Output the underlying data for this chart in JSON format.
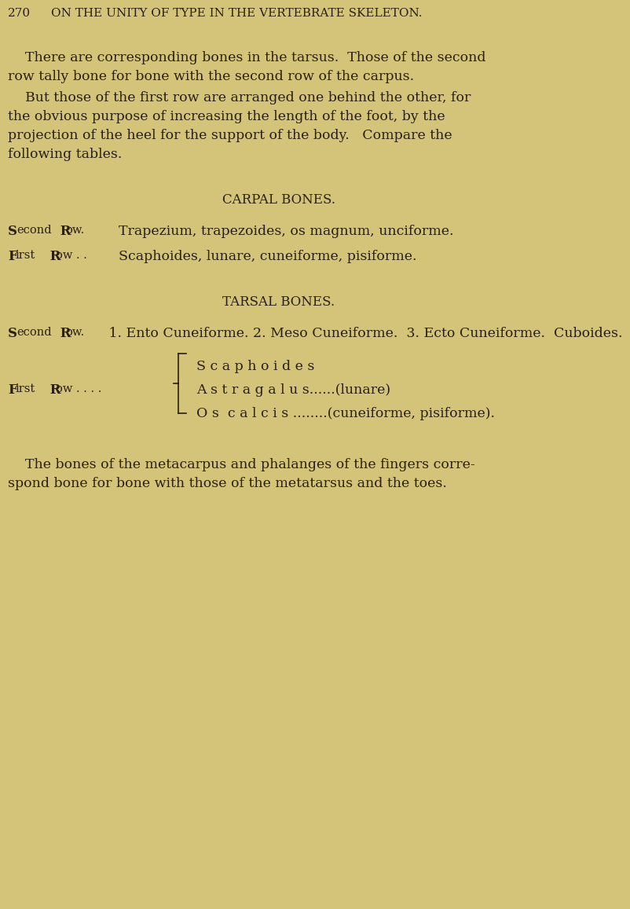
{
  "background_color": "#d4c47a",
  "text_color": "#2a1f0e",
  "page_width": 8.0,
  "page_height": 13.36,
  "header_number": "270",
  "header_title": "ON THE UNITY OF TYPE IN THE VERTEBRATE SKELETON.",
  "para1_line1": "    There are corresponding bones in the tarsus.  Those of the second",
  "para1_line2": "row tally bone for bone with the second row of the carpus.",
  "para2_line1": "    But those of the first row are arranged one behind the other, for",
  "para2_line2": "the obvious purpose of increasing the length of the foot, by the",
  "para2_line3": "projection of the heel for the support of the body.   Compare the",
  "para2_line4": "following tables.",
  "carpal_title": "CARPAL BONES.",
  "carpal_second_label": "Second Row.",
  "carpal_second_text": "Trapezium, trapezoides, os magnum, unciforme.",
  "carpal_first_label": "First Row . .",
  "carpal_first_text": "Scaphoides, lunare, cuneiforme, pisiforme.",
  "tarsal_title": "TARSAL BONES.",
  "tarsal_second_label": "Second Row.",
  "tarsal_second_text": "1. Ento Cuneiforme. 2. Meso Cuneiforme.  3. Ecto Cuneiforme.  Cuboides.",
  "tarsal_first_label": "First Row . . . .",
  "brace_line1": "S c a p h o i d e s",
  "brace_line2": "A s t r a g a l u s......(lunare)",
  "brace_line3": "O s  c a l c i s ........(cuneiforme, pisiforme).",
  "close_line1": "    The bones of the metacarpus and phalanges of the fingers corre-",
  "close_line2": "spond bone for bone with those of the metatarsus and the toes.",
  "body_fs": 12.5,
  "header_fs": 11.0,
  "title_fs": 12.0,
  "label_fs": 12.0
}
